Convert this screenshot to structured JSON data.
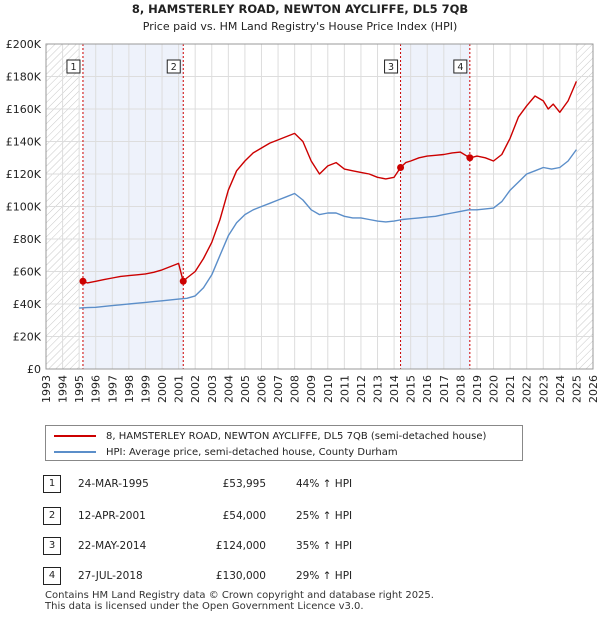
{
  "chart_data": {
    "type": "line",
    "title": "8, HAMSTERLEY ROAD, NEWTON AYCLIFFE, DL5 7QB",
    "subtitle": "Price paid vs. HM Land Registry's House Price Index (HPI)",
    "xlabel": "",
    "ylabel": "",
    "xlim": [
      1993,
      2026
    ],
    "ylim": [
      0,
      200000
    ],
    "x_ticks": [
      1993,
      1994,
      1995,
      1996,
      1997,
      1998,
      1999,
      2000,
      2001,
      2002,
      2003,
      2004,
      2005,
      2006,
      2007,
      2008,
      2009,
      2010,
      2011,
      2012,
      2013,
      2014,
      2015,
      2016,
      2017,
      2018,
      2019,
      2020,
      2021,
      2022,
      2023,
      2024,
      2025,
      2026
    ],
    "y_ticks": [
      {
        "value": 0,
        "label": "£0"
      },
      {
        "value": 20000,
        "label": "£20K"
      },
      {
        "value": 40000,
        "label": "£40K"
      },
      {
        "value": 60000,
        "label": "£60K"
      },
      {
        "value": 80000,
        "label": "£80K"
      },
      {
        "value": 100000,
        "label": "£100K"
      },
      {
        "value": 120000,
        "label": "£120K"
      },
      {
        "value": 140000,
        "label": "£140K"
      },
      {
        "value": 160000,
        "label": "£160K"
      },
      {
        "value": 180000,
        "label": "£180K"
      },
      {
        "value": 200000,
        "label": "£200K"
      }
    ],
    "grid": true,
    "hatched_ranges": [
      [
        1993,
        1995.0
      ],
      [
        2025.0,
        2026
      ]
    ],
    "shaded_ranges": [
      [
        1995.23,
        2001.28
      ],
      [
        2014.39,
        2018.57
      ]
    ],
    "series": [
      {
        "name": "8, HAMSTERLEY ROAD, NEWTON AYCLIFFE, DL5 7QB (semi-detached house)",
        "color": "#cc0000",
        "x": [
          1995.23,
          1995.5,
          1996,
          1996.5,
          1997,
          1997.5,
          1998,
          1998.5,
          1999,
          1999.5,
          2000,
          2000.5,
          2001,
          2001.28,
          2001.5,
          2002,
          2002.5,
          2003,
          2003.5,
          2004,
          2004.5,
          2005,
          2005.5,
          2006,
          2006.5,
          2007,
          2007.5,
          2008,
          2008.5,
          2009,
          2009.5,
          2010,
          2010.5,
          2011,
          2011.5,
          2012,
          2012.5,
          2013,
          2013.5,
          2014,
          2014.39,
          2014.7,
          2015,
          2015.5,
          2016,
          2016.5,
          2017,
          2017.5,
          2018,
          2018.57,
          2018.8,
          2019,
          2019.5,
          2020,
          2020.5,
          2021,
          2021.5,
          2022,
          2022.5,
          2023,
          2023.3,
          2023.6,
          2024,
          2024.5,
          2025
        ],
        "y": [
          53995,
          53000,
          54000,
          55000,
          56000,
          57000,
          57500,
          58000,
          58500,
          59500,
          61000,
          63000,
          65000,
          54000,
          56000,
          60000,
          68000,
          78000,
          92000,
          110000,
          122000,
          128000,
          133000,
          136000,
          139000,
          141000,
          143000,
          145000,
          140000,
          128000,
          120000,
          125000,
          127000,
          123000,
          122000,
          121000,
          120000,
          118000,
          117000,
          118000,
          124000,
          127000,
          128000,
          130000,
          131000,
          131500,
          132000,
          133000,
          133500,
          130000,
          130500,
          131000,
          130000,
          128000,
          132000,
          142000,
          155000,
          162000,
          168000,
          165000,
          160000,
          163000,
          158000,
          165000,
          177000
        ]
      },
      {
        "name": "HPI: Average price, semi-detached house, County Durham",
        "color": "#5b8ec9",
        "x": [
          1995,
          1995.5,
          1996,
          1996.5,
          1997,
          1997.5,
          1998,
          1998.5,
          1999,
          1999.5,
          2000,
          2000.5,
          2001,
          2001.5,
          2002,
          2002.5,
          2003,
          2003.5,
          2004,
          2004.5,
          2005,
          2005.5,
          2006,
          2006.5,
          2007,
          2007.5,
          2008,
          2008.5,
          2009,
          2009.5,
          2010,
          2010.5,
          2011,
          2011.5,
          2012,
          2012.5,
          2013,
          2013.5,
          2014,
          2014.5,
          2015,
          2015.5,
          2016,
          2016.5,
          2017,
          2017.5,
          2018,
          2018.5,
          2019,
          2019.5,
          2020,
          2020.5,
          2021,
          2021.5,
          2022,
          2022.5,
          2023,
          2023.5,
          2024,
          2024.5,
          2025
        ],
        "y": [
          37500,
          37800,
          38000,
          38500,
          39000,
          39500,
          40000,
          40500,
          41000,
          41500,
          42000,
          42500,
          43000,
          43500,
          45000,
          50000,
          58000,
          70000,
          82000,
          90000,
          95000,
          98000,
          100000,
          102000,
          104000,
          106000,
          108000,
          104000,
          98000,
          95000,
          96000,
          96000,
          94000,
          93000,
          93000,
          92000,
          91000,
          90500,
          91000,
          92000,
          92500,
          93000,
          93500,
          94000,
          95000,
          96000,
          97000,
          98000,
          98000,
          98500,
          99000,
          103000,
          110000,
          115000,
          120000,
          122000,
          124000,
          123000,
          124000,
          128000,
          135000
        ]
      }
    ],
    "sale_markers": [
      {
        "label": "1",
        "x": 1995.23,
        "y": 53995
      },
      {
        "label": "2",
        "x": 2001.28,
        "y": 54000
      },
      {
        "label": "3",
        "x": 2014.39,
        "y": 124000
      },
      {
        "label": "4",
        "x": 2018.57,
        "y": 130000
      }
    ]
  },
  "legend": {
    "series1_label": "8, HAMSTERLEY ROAD, NEWTON AYCLIFFE, DL5 7QB (semi-detached house)",
    "series2_label": "HPI: Average price, semi-detached house, County Durham"
  },
  "sales": [
    {
      "num": "1",
      "date": "24-MAR-1995",
      "price": "£53,995",
      "hpi": "44% ↑ HPI"
    },
    {
      "num": "2",
      "date": "12-APR-2001",
      "price": "£54,000",
      "hpi": "25% ↑ HPI"
    },
    {
      "num": "3",
      "date": "22-MAY-2014",
      "price": "£124,000",
      "hpi": "35% ↑ HPI"
    },
    {
      "num": "4",
      "date": "27-JUL-2018",
      "price": "£130,000",
      "hpi": "29% ↑ HPI"
    }
  ],
  "footer": {
    "line1": "Contains HM Land Registry data © Crown copyright and database right 2025.",
    "line2": "This data is licensed under the Open Government Licence v3.0."
  }
}
